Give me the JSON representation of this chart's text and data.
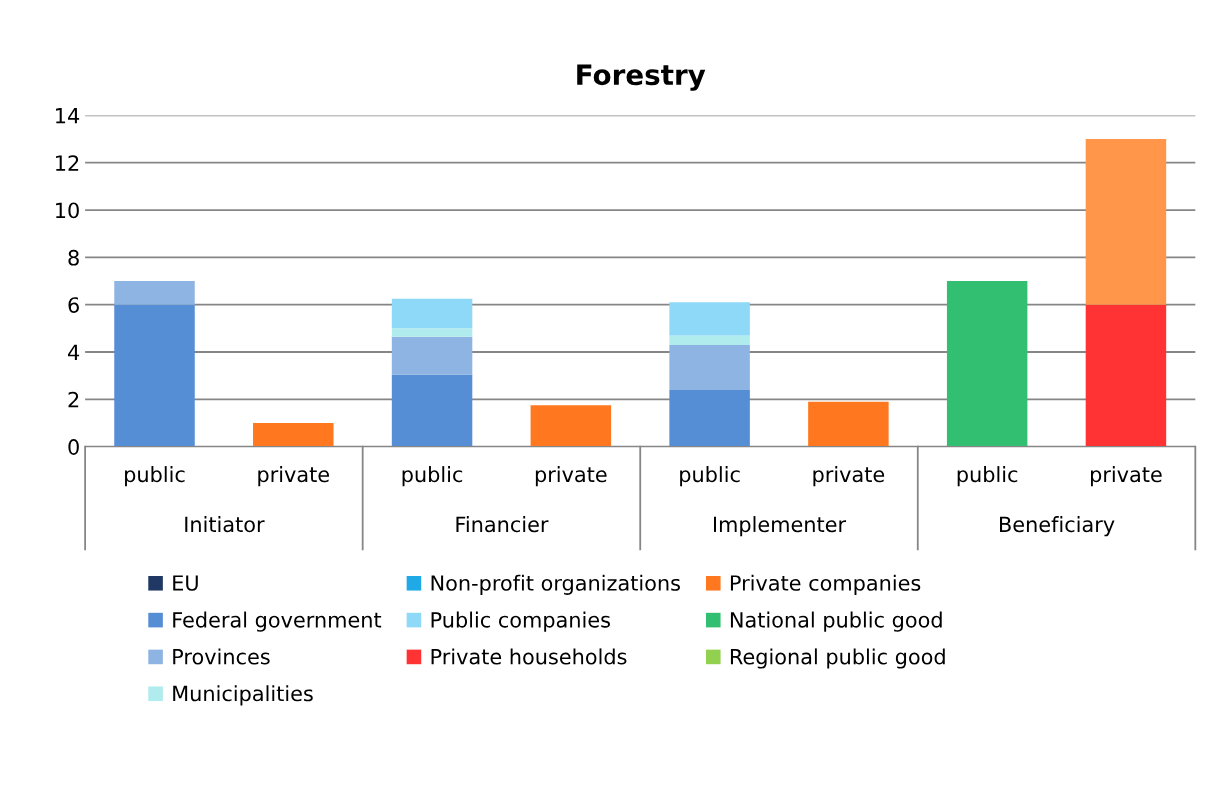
{
  "chart_data": {
    "type": "bar",
    "title": "Forestry",
    "stacked": true,
    "categories": [
      "public",
      "private",
      "public",
      "private",
      "public",
      "private",
      "public",
      "private"
    ],
    "annotations": [
      "Initiator",
      "Financier",
      "Implementer",
      "Beneficiary"
    ],
    "ylim": [
      0,
      14
    ],
    "yticks": [
      0,
      2,
      4,
      6,
      8,
      10,
      12,
      14
    ],
    "grid": "y",
    "legend": "bottom",
    "series": [
      {
        "name": "EU",
        "color": "#1f3864",
        "values": [
          null,
          null,
          null,
          null,
          null,
          null,
          null,
          null
        ]
      },
      {
        "name": "Federal government",
        "color": "#558ed5",
        "values": [
          6,
          null,
          3.05,
          null,
          2.4,
          null,
          null,
          null
        ]
      },
      {
        "name": "Provinces",
        "color": "#8eb4e3",
        "values": [
          1,
          null,
          1.6,
          null,
          1.9,
          null,
          null,
          null
        ]
      },
      {
        "name": "Municipalities",
        "color": "#b0ebee",
        "values": [
          null,
          null,
          0.35,
          null,
          0.4,
          null,
          null,
          null
        ]
      },
      {
        "name": "Non-profit organizations",
        "color": "#1fa9e6",
        "values": [
          null,
          null,
          null,
          null,
          null,
          null,
          null,
          null
        ]
      },
      {
        "name": "Public companies",
        "color": "#8ed8f8",
        "values": [
          null,
          null,
          1.25,
          null,
          1.4,
          null,
          null,
          null
        ]
      },
      {
        "name": "Private households",
        "color": "#ff3333",
        "values": [
          null,
          null,
          null,
          null,
          null,
          null,
          null,
          6
        ]
      },
      {
        "name": "Private companies",
        "color": "#ff781f",
        "colors": [
          "#ff781f",
          "#ff781f",
          "#ff781f",
          "#ff781f",
          "#ff781f",
          "#ff781f",
          "#ff781f",
          "#ff964a"
        ],
        "values": [
          null,
          1,
          null,
          1.75,
          null,
          1.9,
          null,
          7
        ]
      },
      {
        "name": "National public good",
        "color": "#33bf72",
        "values": [
          null,
          null,
          null,
          null,
          null,
          null,
          7,
          null
        ]
      },
      {
        "name": "Regional public good",
        "color": "#92d050",
        "values": [
          null,
          null,
          null,
          null,
          null,
          null,
          null,
          null
        ]
      }
    ]
  }
}
